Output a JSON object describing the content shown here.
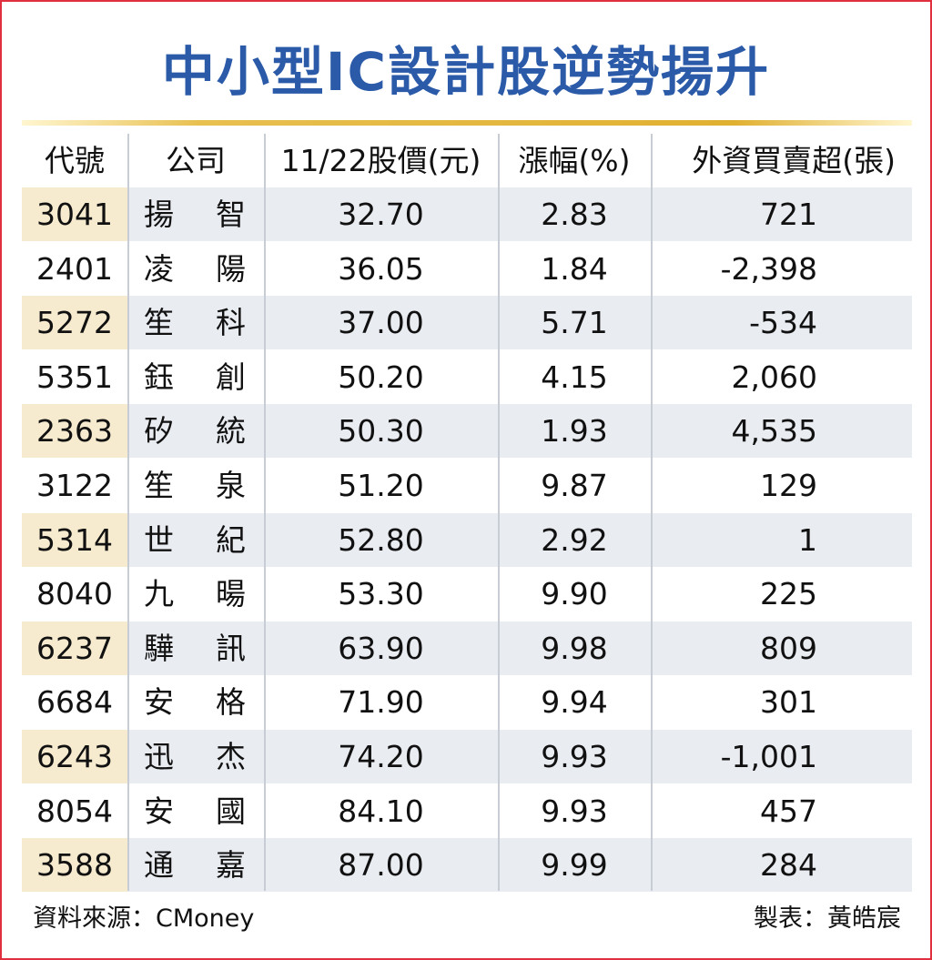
{
  "title": "中小型IC設計股逆勢揚升",
  "table": {
    "header": [
      "代號",
      "公司",
      "11/22股價(元)",
      "漲幅(%)",
      "外資買賣超(張)"
    ],
    "rows": [
      [
        "3041",
        "揚智",
        "32.70",
        "2.83",
        "721"
      ],
      [
        "2401",
        "凌陽",
        "36.05",
        "1.84",
        "-2,398"
      ],
      [
        "5272",
        "笙科",
        "37.00",
        "5.71",
        "-534"
      ],
      [
        "5351",
        "鈺創",
        "50.20",
        "4.15",
        "2,060"
      ],
      [
        "2363",
        "矽統",
        "50.30",
        "1.93",
        "4,535"
      ],
      [
        "3122",
        "笙泉",
        "51.20",
        "9.87",
        "129"
      ],
      [
        "5314",
        "世紀",
        "52.80",
        "2.92",
        "1"
      ],
      [
        "8040",
        "九暘",
        "53.30",
        "9.90",
        "225"
      ],
      [
        "6237",
        "驊訊",
        "63.90",
        "9.98",
        "809"
      ],
      [
        "6684",
        "安格",
        "71.90",
        "9.94",
        "301"
      ],
      [
        "6243",
        "迅杰",
        "74.20",
        "9.93",
        "-1,001"
      ],
      [
        "8054",
        "安國",
        "84.10",
        "9.93",
        "457"
      ],
      [
        "3588",
        "通嘉",
        "87.00",
        "9.99",
        "284"
      ]
    ]
  },
  "footer": {
    "source": "資料來源：CMoney",
    "credit": "製表：黃皓宸"
  }
}
